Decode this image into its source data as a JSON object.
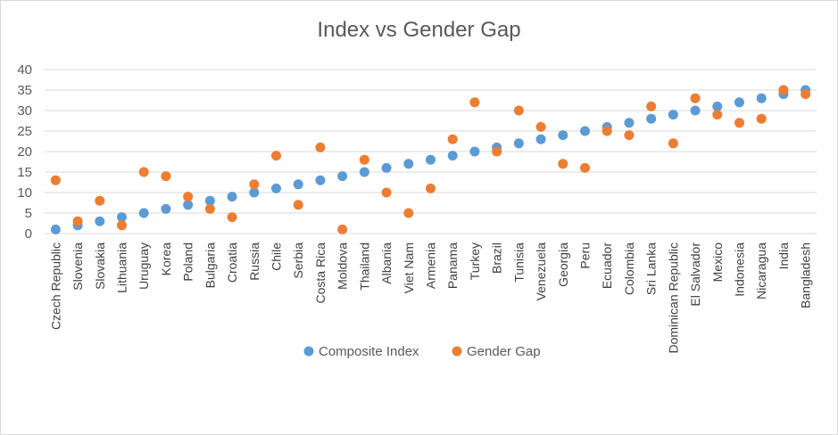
{
  "chart_data": {
    "type": "scatter",
    "title": "Index vs Gender Gap",
    "categories": [
      "Czech Republic",
      "Slovenia",
      "Slovakia",
      "Lithuania",
      "Uruguay",
      "Korea",
      "Poland",
      "Bulgaria",
      "Croatia",
      "Russia",
      "Chile",
      "Serbia",
      "Costa Rica",
      "Moldova",
      "Thailand",
      "Albania",
      "Viet Nam",
      "Armenia",
      "Panama",
      "Turkey",
      "Brazil",
      "Tunisia",
      "Venezuela",
      "Georgia",
      "Peru",
      "Ecuador",
      "Colombia",
      "Sri Lanka",
      "Dominican Republic",
      "El Salvador",
      "Mexico",
      "Indonesia",
      "Nicaragua",
      "India",
      "Bangladesh"
    ],
    "series": [
      {
        "name": "Composite Index",
        "color": "#5b9bd5",
        "values": [
          1,
          2,
          3,
          4,
          5,
          6,
          7,
          8,
          9,
          10,
          11,
          12,
          13,
          14,
          15,
          16,
          17,
          18,
          19,
          20,
          21,
          22,
          23,
          24,
          25,
          26,
          27,
          28,
          29,
          30,
          31,
          32,
          33,
          34,
          35
        ]
      },
      {
        "name": "Gender Gap",
        "color": "#ed7d31",
        "values": [
          13,
          3,
          8,
          2,
          15,
          14,
          9,
          6,
          4,
          12,
          19,
          7,
          21,
          1,
          18,
          10,
          5,
          11,
          23,
          32,
          20,
          30,
          26,
          17,
          16,
          25,
          24,
          31,
          22,
          33,
          29,
          27,
          28,
          35,
          34
        ]
      }
    ],
    "ylim": [
      0,
      40
    ],
    "yticks": [
      "0",
      "5",
      "10",
      "15",
      "20",
      "25",
      "30",
      "35",
      "40"
    ],
    "grid": true,
    "legend": "bottom"
  }
}
